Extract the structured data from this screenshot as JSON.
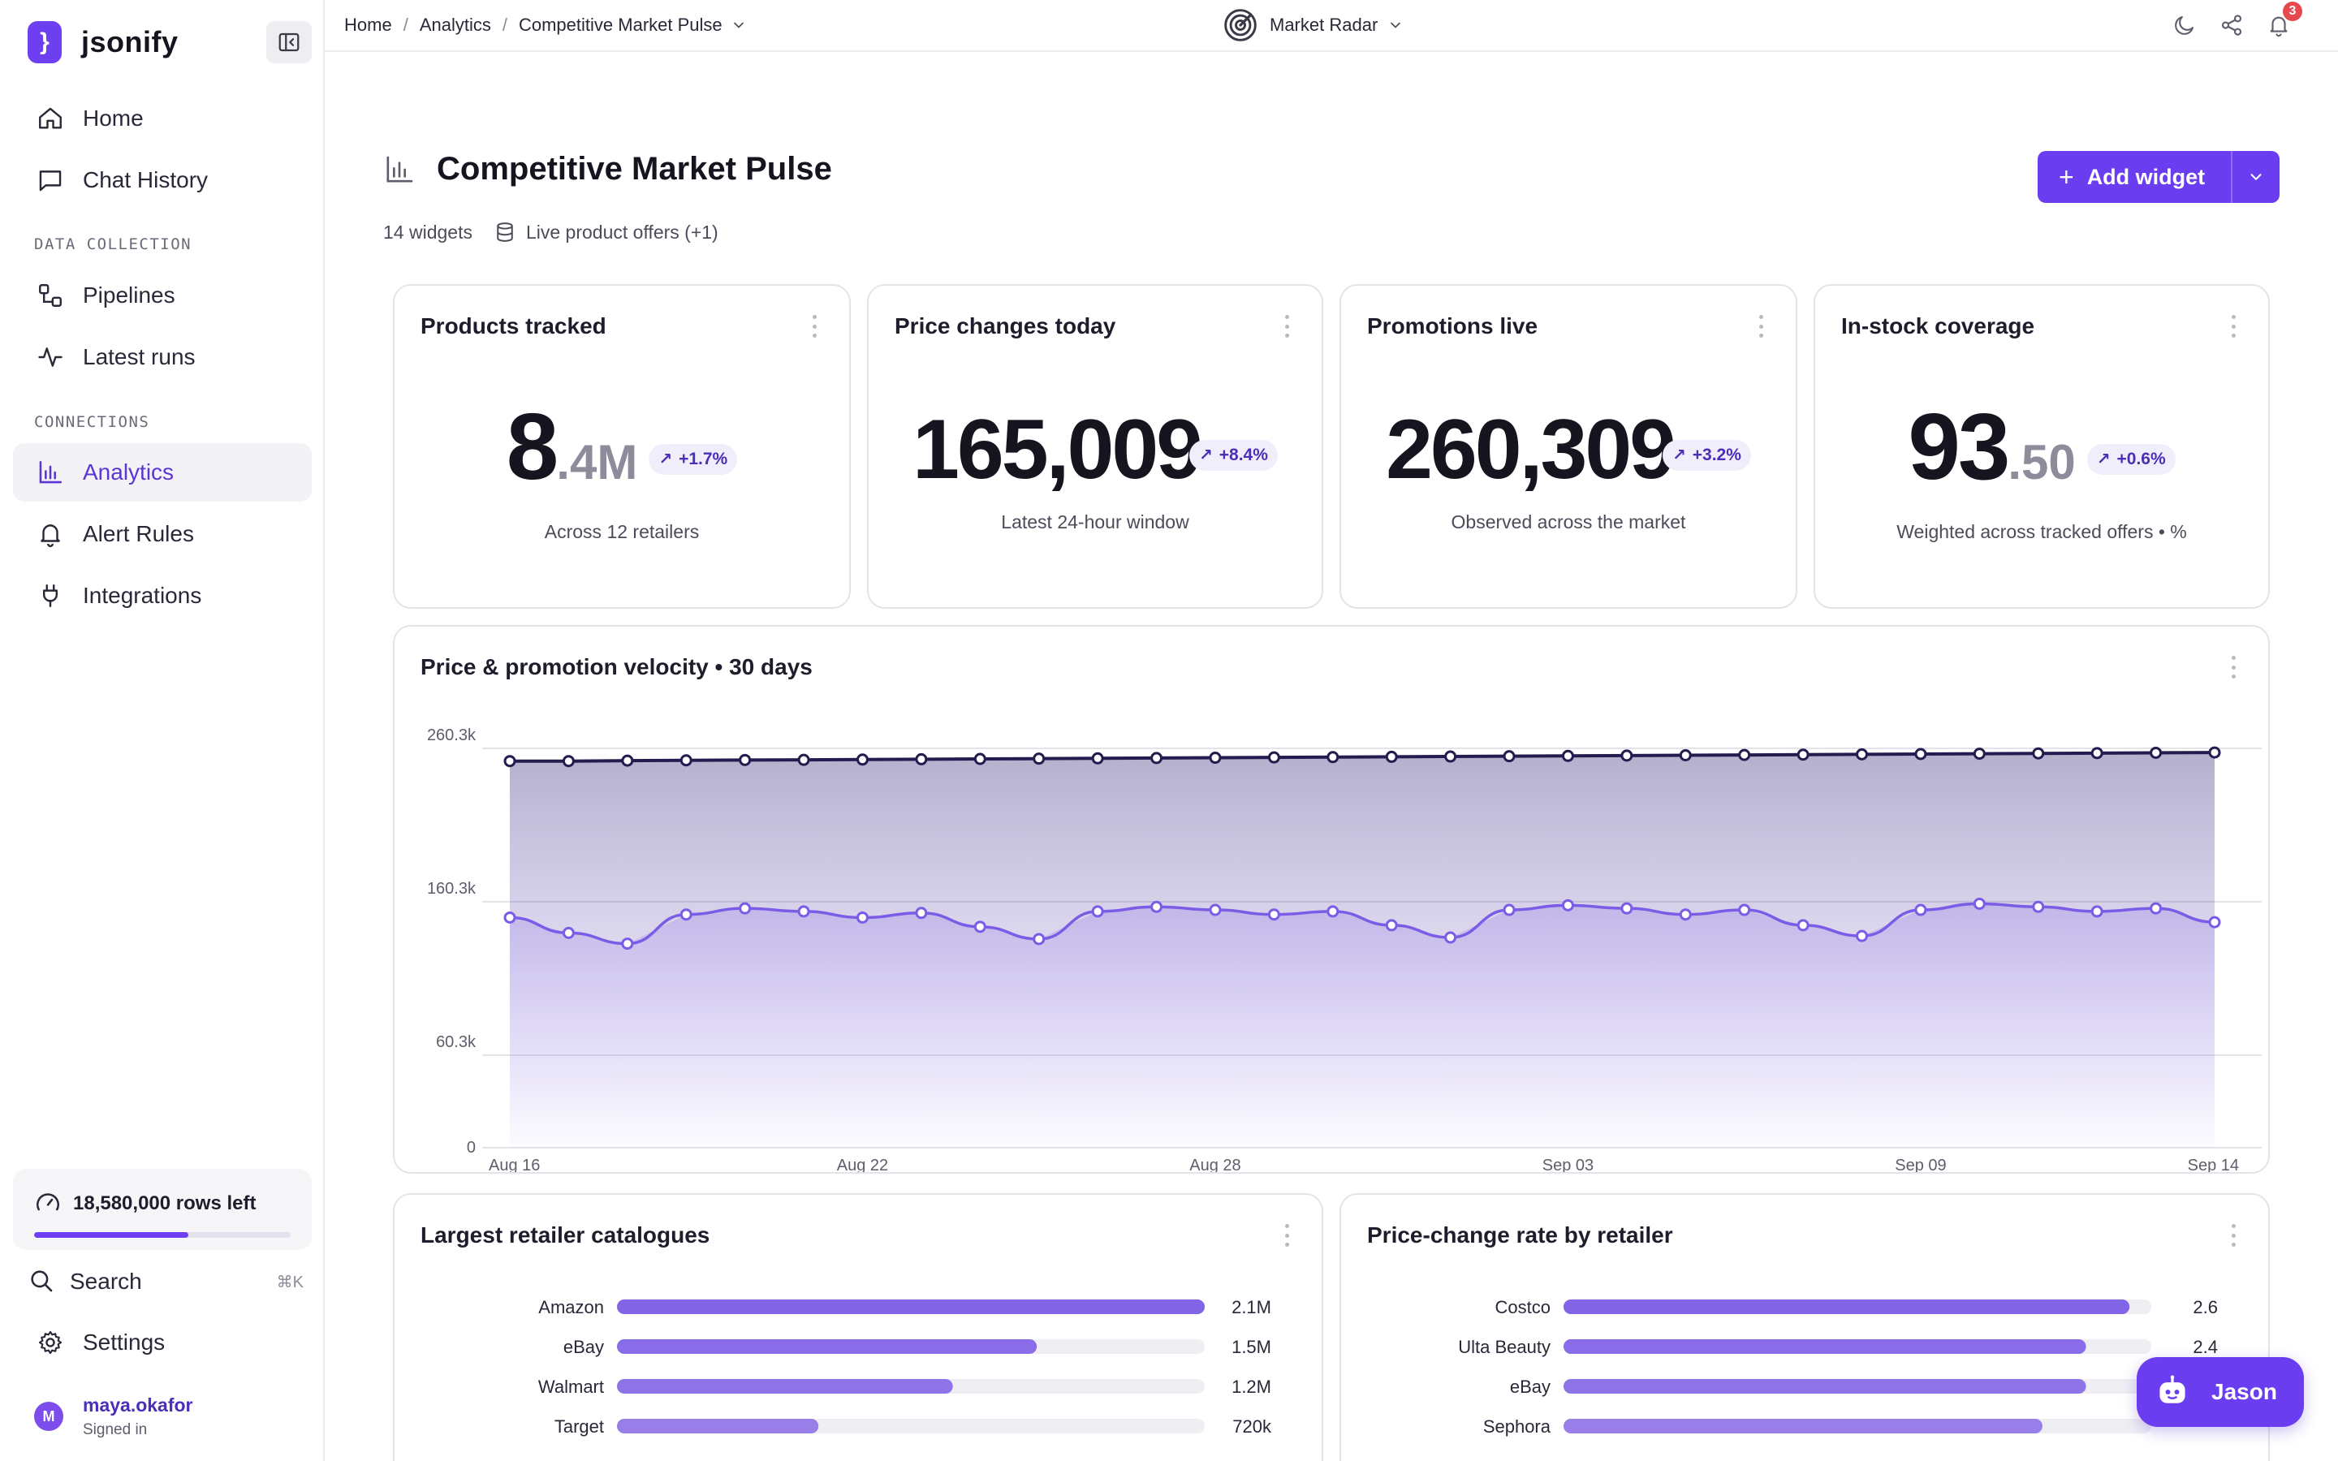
{
  "brand": {
    "name": "jsonify",
    "logo_glyph": "}"
  },
  "sidebar": {
    "items_top": [
      {
        "label": "Home",
        "icon": "home-icon"
      },
      {
        "label": "Chat History",
        "icon": "chat-icon"
      }
    ],
    "section_data": "DATA COLLECTION",
    "items_data": [
      {
        "label": "Pipelines",
        "icon": "pipeline-icon"
      },
      {
        "label": "Latest runs",
        "icon": "activity-icon"
      }
    ],
    "section_connections": "CONNECTIONS",
    "items_connections": [
      {
        "label": "Analytics",
        "icon": "bar-chart-icon",
        "active": true
      },
      {
        "label": "Alert Rules",
        "icon": "bell-icon"
      },
      {
        "label": "Integrations",
        "icon": "plug-icon"
      }
    ],
    "rows_left": "18,580,000 rows left",
    "rows_fraction": 0.6,
    "search_label": "Search",
    "search_shortcut": "⌘K",
    "settings_label": "Settings",
    "user": {
      "initial": "M",
      "name": "maya.okafor",
      "status": "Signed in"
    }
  },
  "topbar": {
    "breadcrumb": [
      "Home",
      "Analytics",
      "Competitive Market Pulse"
    ],
    "workspace": "Market Radar",
    "notification_count": "3"
  },
  "page": {
    "title": "Competitive Market Pulse",
    "widget_count": "14 widgets",
    "source": "Live product offers (+1)",
    "add_widget_label": "Add widget"
  },
  "kpis": [
    {
      "title": "Products tracked",
      "big": "8",
      "small": ".4M",
      "delta": "+1.7%",
      "sub": "Across 12 retailers"
    },
    {
      "title": "Price changes today",
      "big": "165,009",
      "small": "",
      "delta": "+8.4%",
      "sub": "Latest 24-hour window"
    },
    {
      "title": "Promotions live",
      "big": "260,309",
      "small": "",
      "delta": "+3.2%",
      "sub": "Observed across the market"
    },
    {
      "title": "In-stock coverage",
      "big": "93",
      "small": ".50",
      "delta": "+0.6%",
      "sub": "Weighted across tracked offers • %"
    }
  ],
  "velocity_card": {
    "title": "Price & promotion velocity • 30 days"
  },
  "retailer_catalogues": {
    "title": "Largest retailer catalogues"
  },
  "price_change_rate": {
    "title": "Price-change rate by retailer"
  },
  "assistant": {
    "label": "Jason"
  },
  "colors": {
    "accent": "#6a3ef0",
    "series_dark": "#241c4f",
    "series_light": "#7b5ce6"
  },
  "chart_data": [
    {
      "type": "area",
      "title": "Price & promotion velocity • 30 days",
      "ylim": [
        0,
        260300
      ],
      "yticks": [
        "260.3k",
        "160.3k",
        "60.3k",
        "0"
      ],
      "xtick_labels": [
        "Aug 16",
        "Aug 22",
        "Aug 28",
        "Sep 03",
        "Sep 09",
        "Sep 14"
      ],
      "x": [
        "Aug 16",
        "Aug 17",
        "Aug 18",
        "Aug 19",
        "Aug 20",
        "Aug 21",
        "Aug 22",
        "Aug 23",
        "Aug 24",
        "Aug 25",
        "Aug 26",
        "Aug 27",
        "Aug 28",
        "Aug 29",
        "Aug 30",
        "Aug 31",
        "Sep 01",
        "Sep 02",
        "Sep 03",
        "Sep 04",
        "Sep 05",
        "Sep 06",
        "Sep 07",
        "Sep 08",
        "Sep 09",
        "Sep 10",
        "Sep 11",
        "Sep 12",
        "Sep 13",
        "Sep 14"
      ],
      "series": [
        {
          "values": [
            252000,
            252000,
            252300,
            252500,
            252700,
            252800,
            253000,
            253200,
            253400,
            253600,
            253800,
            254000,
            254200,
            254400,
            254600,
            254800,
            255000,
            255200,
            255400,
            255600,
            255800,
            256000,
            256200,
            256400,
            256600,
            256800,
            257000,
            257200,
            257400,
            257600
          ]
        },
        {
          "values": [
            150000,
            140000,
            133000,
            152000,
            156000,
            154000,
            150000,
            153000,
            144000,
            136000,
            154000,
            157000,
            155000,
            152000,
            154000,
            145000,
            137000,
            155000,
            158000,
            156000,
            152000,
            155000,
            145000,
            138000,
            155000,
            159000,
            157000,
            154000,
            156000,
            147000
          ]
        }
      ]
    },
    {
      "type": "bar",
      "title": "Largest retailer catalogues",
      "categories": [
        "Amazon",
        "eBay",
        "Walmart",
        "Target"
      ],
      "values": [
        2100000,
        1500000,
        1200000,
        720000
      ],
      "value_labels": [
        "2.1M",
        "1.5M",
        "1.2M",
        "720k"
      ],
      "xlim": [
        0,
        2100000
      ]
    },
    {
      "type": "bar",
      "title": "Price-change rate by retailer",
      "categories": [
        "Costco",
        "Ulta Beauty",
        "eBay",
        "Sephora"
      ],
      "values": [
        2.6,
        2.4,
        2.4,
        2.2
      ],
      "value_labels": [
        "2.6",
        "2.4",
        "",
        ""
      ],
      "xlim": [
        0,
        2.7
      ]
    }
  ]
}
